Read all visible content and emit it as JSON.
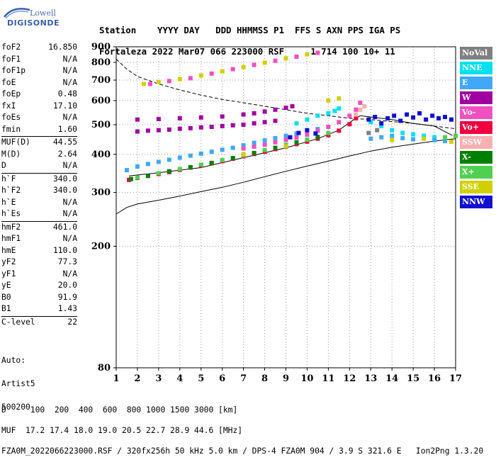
{
  "logo": {
    "line1": "Lowell",
    "line2": "DIGISONDE"
  },
  "header": {
    "line1": "Station    YYYY DAY   DDD HHMMSS P1  FFS S AXN PPS IGA PS",
    "line2": "Fortaleza 2022 Mar07 066 223000 RSF     1 714 100 10+ 11"
  },
  "params": {
    "group1": [
      {
        "k": "foF2",
        "v": "16.850"
      },
      {
        "k": "foF1",
        "v": "N/A"
      },
      {
        "k": "foF1p",
        "v": "N/A"
      },
      {
        "k": "foE",
        "v": "N/A"
      },
      {
        "k": "foEp",
        "v": "0.48"
      },
      {
        "k": "fxI",
        "v": "17.10"
      },
      {
        "k": "foEs",
        "v": "N/A"
      },
      {
        "k": "fmin",
        "v": "1.60"
      }
    ],
    "group2": [
      {
        "k": "MUF(D)",
        "v": "44.55"
      },
      {
        "k": "M(D)",
        "v": "2.64"
      },
      {
        "k": "D",
        "v": "N/A"
      }
    ],
    "group3": [
      {
        "k": "h`F",
        "v": "340.0"
      },
      {
        "k": "h`F2",
        "v": "340.0"
      },
      {
        "k": "h`E",
        "v": "N/A"
      },
      {
        "k": "h`Es",
        "v": "N/A"
      }
    ],
    "group4": [
      {
        "k": "hmF2",
        "v": "461.0"
      },
      {
        "k": "hmF1",
        "v": "N/A"
      },
      {
        "k": "hmE",
        "v": "110.0"
      },
      {
        "k": "yF2",
        "v": "77.3"
      },
      {
        "k": "yF1",
        "v": "N/A"
      },
      {
        "k": "yE",
        "v": "20.0"
      },
      {
        "k": "B0",
        "v": "91.9"
      },
      {
        "k": "B1",
        "v": "1.43"
      }
    ],
    "group5": [
      {
        "k": "C-level",
        "v": "22"
      }
    ]
  },
  "auto": {
    "line1": "Auto:",
    "line2": "Artist5",
    "line3": "500200"
  },
  "legend": [
    {
      "label": "NoVal",
      "color": "#808080"
    },
    {
      "label": "NNE",
      "color": "#00e0f0"
    },
    {
      "label": "E",
      "color": "#40a8f8"
    },
    {
      "label": "W",
      "color": "#a000a0"
    },
    {
      "label": "Vo-",
      "color": "#f050c0"
    },
    {
      "label": "Vo+",
      "color": "#f00040"
    },
    {
      "label": "SSW",
      "color": "#f8b0b0"
    },
    {
      "label": "X-",
      "color": "#008000"
    },
    {
      "label": "X+",
      "color": "#50d050"
    },
    {
      "label": "SSE",
      "color": "#d0d000"
    },
    {
      "label": "NNW",
      "color": "#1010d0"
    }
  ],
  "footer": {
    "line1": "D     100  200  400  600  800 1000 1500 3000 [km]",
    "line2": "MUF  17.2 17.4 18.0 19.0 20.5 22.7 28.9 44.6 [MHz]",
    "line3": "FZA0M_2022066223000.RSF / 320fx256h 50 kHz 5.0 km / DPS-4 FZA0M 904 / 3.9 S 321.6 E   Ion2Png 1.3.20"
  },
  "chart_data": {
    "type": "scatter",
    "title": "",
    "xlabel": "",
    "ylabel": "",
    "xlim": [
      1,
      17
    ],
    "ylim": [
      80,
      900
    ],
    "yscale": "log",
    "xticks": [
      1,
      2,
      3,
      4,
      5,
      6,
      7,
      8,
      9,
      10,
      11,
      12,
      13,
      14,
      15,
      16,
      17
    ],
    "yticks": [
      80,
      200,
      300,
      400,
      500,
      600,
      700,
      800,
      900
    ],
    "grid": true,
    "series": [
      {
        "name": "W",
        "color": "#a000a0",
        "points": [
          [
            2.0,
            475
          ],
          [
            2.5,
            478
          ],
          [
            3.0,
            480
          ],
          [
            3.5,
            482
          ],
          [
            4.0,
            485
          ],
          [
            4.5,
            487
          ],
          [
            5.0,
            490
          ],
          [
            5.5,
            492
          ],
          [
            6.0,
            495
          ],
          [
            6.5,
            498
          ],
          [
            7.0,
            500
          ],
          [
            7.5,
            505
          ],
          [
            8.0,
            510
          ],
          [
            8.5,
            515
          ],
          [
            2.0,
            520
          ],
          [
            3.0,
            522
          ],
          [
            4.0,
            525
          ],
          [
            5.0,
            528
          ],
          [
            6.0,
            532
          ],
          [
            7.0,
            540
          ],
          [
            7.5,
            545
          ],
          [
            8.0,
            552
          ],
          [
            8.5,
            560
          ],
          [
            9.0,
            568
          ],
          [
            9.3,
            575
          ]
        ]
      },
      {
        "name": "NNE",
        "color": "#00e0f0",
        "points": [
          [
            9.5,
            505
          ],
          [
            10.0,
            520
          ],
          [
            10.5,
            535
          ],
          [
            11.0,
            545
          ],
          [
            11.3,
            555
          ],
          [
            11.5,
            565
          ],
          [
            13.0,
            510
          ],
          [
            13.5,
            495
          ],
          [
            14.0,
            480
          ],
          [
            14.5,
            470
          ],
          [
            15.0,
            465
          ],
          [
            15.5,
            460
          ],
          [
            16.0,
            455
          ]
        ]
      },
      {
        "name": "E",
        "color": "#40a8f8",
        "points": [
          [
            1.5,
            355
          ],
          [
            2.0,
            365
          ],
          [
            2.5,
            372
          ],
          [
            3.0,
            378
          ],
          [
            3.5,
            384
          ],
          [
            4.0,
            390
          ],
          [
            4.5,
            396
          ],
          [
            5.0,
            402
          ],
          [
            5.5,
            408
          ],
          [
            6.0,
            414
          ],
          [
            6.5,
            420
          ],
          [
            7.0,
            428
          ],
          [
            7.5,
            436
          ],
          [
            8.0,
            444
          ],
          [
            8.5,
            452
          ],
          [
            9.0,
            460
          ],
          [
            9.5,
            468
          ],
          [
            10.0,
            476
          ],
          [
            10.5,
            484
          ],
          [
            11.0,
            492
          ],
          [
            13.0,
            450
          ],
          [
            13.5,
            455
          ],
          [
            14.0,
            460
          ],
          [
            14.5,
            452
          ],
          [
            15.0,
            448
          ],
          [
            16.0,
            445
          ],
          [
            16.5,
            442
          ]
        ]
      },
      {
        "name": "Vo-",
        "color": "#f050c0",
        "points": [
          [
            7.0,
            418
          ],
          [
            7.5,
            424
          ],
          [
            8.0,
            430
          ],
          [
            8.5,
            438
          ],
          [
            9.0,
            446
          ],
          [
            9.5,
            454
          ],
          [
            10.0,
            464
          ],
          [
            10.5,
            478
          ],
          [
            11.0,
            492
          ],
          [
            11.5,
            510
          ],
          [
            12.0,
            535
          ],
          [
            12.3,
            560
          ],
          [
            12.5,
            590
          ],
          [
            2.6,
            680
          ],
          [
            3.5,
            695
          ],
          [
            4.5,
            710
          ],
          [
            5.5,
            735
          ],
          [
            6.5,
            760
          ],
          [
            7.5,
            785
          ],
          [
            8.5,
            810
          ],
          [
            9.5,
            835
          ],
          [
            10.5,
            860
          ]
        ]
      },
      {
        "name": "Vo+",
        "color": "#f00040",
        "points": [
          [
            1.6,
            330
          ],
          [
            2.0,
            335
          ],
          [
            2.5,
            340
          ],
          [
            3.0,
            345
          ],
          [
            3.5,
            350
          ],
          [
            4.0,
            356
          ],
          [
            4.5,
            362
          ],
          [
            5.0,
            368
          ],
          [
            5.5,
            374
          ],
          [
            6.0,
            380
          ],
          [
            6.5,
            387
          ],
          [
            7.0,
            394
          ],
          [
            7.5,
            401
          ],
          [
            8.0,
            408
          ],
          [
            8.5,
            416
          ],
          [
            9.0,
            424
          ],
          [
            9.5,
            432
          ],
          [
            10.0,
            440
          ],
          [
            10.5,
            450
          ],
          [
            11.0,
            462
          ],
          [
            11.5,
            478
          ],
          [
            12.0,
            502
          ],
          [
            12.3,
            525
          ]
        ]
      },
      {
        "name": "SSW",
        "color": "#f8b0b0",
        "points": [
          [
            12.3,
            540
          ],
          [
            12.5,
            560
          ],
          [
            12.7,
            575
          ]
        ]
      },
      {
        "name": "X-",
        "color": "#008000",
        "points": [
          [
            1.7,
            332
          ],
          [
            2.5,
            340
          ],
          [
            3.5,
            352
          ],
          [
            4.5,
            363
          ],
          [
            5.5,
            375
          ],
          [
            6.5,
            389
          ],
          [
            7.5,
            404
          ],
          [
            8.5,
            420
          ],
          [
            9.5,
            438
          ],
          [
            10.5,
            456
          ]
        ]
      },
      {
        "name": "X+",
        "color": "#50d050",
        "points": [
          [
            2.0,
            336
          ],
          [
            3.0,
            347
          ],
          [
            4.0,
            358
          ],
          [
            5.0,
            370
          ],
          [
            6.0,
            383
          ],
          [
            7.0,
            397
          ],
          [
            8.0,
            413
          ],
          [
            9.0,
            430
          ],
          [
            10.0,
            447
          ],
          [
            11.0,
            470
          ],
          [
            16.5,
            455
          ],
          [
            17.0,
            460
          ]
        ]
      },
      {
        "name": "SSE",
        "color": "#d0d000",
        "points": [
          [
            2.3,
            680
          ],
          [
            3.0,
            690
          ],
          [
            4.0,
            705
          ],
          [
            5.0,
            725
          ],
          [
            6.0,
            748
          ],
          [
            7.0,
            772
          ],
          [
            8.0,
            798
          ],
          [
            9.0,
            825
          ],
          [
            10.0,
            850
          ],
          [
            11.0,
            600
          ],
          [
            11.5,
            610
          ],
          [
            7.0,
            400
          ],
          [
            9.0,
            425
          ],
          [
            14.0,
            445
          ],
          [
            15.5,
            450
          ],
          [
            16.8,
            440
          ]
        ]
      },
      {
        "name": "NNW",
        "color": "#1010d0",
        "points": [
          [
            9.2,
            455
          ],
          [
            9.6,
            470
          ],
          [
            10.0,
            480
          ],
          [
            10.4,
            468
          ],
          [
            12.9,
            520
          ],
          [
            13.2,
            530
          ],
          [
            13.5,
            505
          ],
          [
            13.8,
            525
          ],
          [
            14.1,
            535
          ],
          [
            14.4,
            515
          ],
          [
            14.7,
            540
          ],
          [
            15.0,
            528
          ],
          [
            15.3,
            545
          ],
          [
            15.6,
            520
          ],
          [
            15.9,
            535
          ],
          [
            16.2,
            525
          ],
          [
            16.5,
            530
          ],
          [
            16.8,
            520
          ]
        ]
      },
      {
        "name": "NoVal",
        "color": "#808080",
        "points": [
          [
            12.9,
            470
          ],
          [
            13.3,
            480
          ]
        ]
      }
    ],
    "lines": [
      {
        "style": "dashed",
        "color": "#000000",
        "points": [
          [
            1.0,
            820
          ],
          [
            1.5,
            760
          ],
          [
            2.0,
            720
          ],
          [
            3.0,
            680
          ],
          [
            4.0,
            650
          ],
          [
            5.0,
            625
          ],
          [
            6.0,
            605
          ],
          [
            7.0,
            590
          ],
          [
            8.0,
            575
          ],
          [
            9.0,
            560
          ],
          [
            10.0,
            545
          ],
          [
            11.0,
            535
          ],
          [
            12.0,
            525
          ],
          [
            13.0,
            520
          ],
          [
            14.0,
            512
          ],
          [
            15.0,
            505
          ],
          [
            16.0,
            495
          ],
          [
            17.0,
            485
          ]
        ]
      },
      {
        "style": "solid",
        "color": "#000000",
        "points": [
          [
            1.0,
            255
          ],
          [
            1.5,
            268
          ],
          [
            2.0,
            275
          ],
          [
            3.0,
            283
          ],
          [
            4.0,
            292
          ],
          [
            5.0,
            302
          ],
          [
            6.0,
            312
          ],
          [
            7.0,
            324
          ],
          [
            8.0,
            338
          ],
          [
            9.0,
            352
          ],
          [
            10.0,
            366
          ],
          [
            11.0,
            380
          ],
          [
            12.0,
            395
          ],
          [
            13.0,
            410
          ],
          [
            14.0,
            422
          ],
          [
            15.0,
            432
          ],
          [
            16.0,
            442
          ],
          [
            17.0,
            450
          ]
        ]
      },
      {
        "style": "solid",
        "color": "#000000",
        "points": [
          [
            1.6,
            340
          ],
          [
            3.0,
            348
          ],
          [
            5.0,
            362
          ],
          [
            7.0,
            390
          ],
          [
            9.0,
            420
          ],
          [
            10.5,
            450
          ],
          [
            11.5,
            480
          ],
          [
            12.2,
            520
          ],
          [
            12.5,
            535
          ],
          [
            14.0,
            520
          ],
          [
            15.0,
            505
          ],
          [
            16.0,
            495
          ],
          [
            16.85,
            461
          ]
        ]
      }
    ]
  }
}
